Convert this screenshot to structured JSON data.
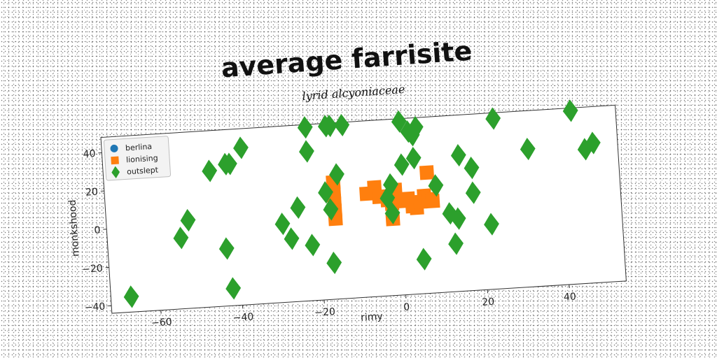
{
  "chart_data": {
    "type": "scatter",
    "title": "average farrisite",
    "subtitle": "lyrid alcyoniaceae",
    "xlabel": "rimy",
    "ylabel": "monkshood",
    "xlim": [
      -72,
      54
    ],
    "ylim": [
      -44,
      48
    ],
    "xticks": [
      -60,
      -40,
      -20,
      0,
      20,
      40
    ],
    "yticks": [
      -40,
      -20,
      0,
      20,
      40
    ],
    "xtick_labels": [
      "−60",
      "−40",
      "−20",
      "0",
      "20",
      "40"
    ],
    "ytick_labels": [
      "−40",
      "−20",
      "0",
      "20",
      "40"
    ],
    "grid": false,
    "legend_position": "top-left",
    "series": [
      {
        "name": "berlina",
        "marker": "circle",
        "color": "#1f77b4",
        "points": []
      },
      {
        "name": "lionising",
        "marker": "square",
        "color": "#ff7f0e",
        "points": [
          [
            -16,
            17
          ],
          [
            -16,
            12
          ],
          [
            -16,
            7
          ],
          [
            -16,
            2
          ],
          [
            -16,
            -2
          ],
          [
            -8,
            10
          ],
          [
            -6,
            13
          ],
          [
            -5,
            8
          ],
          [
            -3,
            6
          ],
          [
            -1,
            11
          ],
          [
            -2,
            4
          ],
          [
            0,
            5
          ],
          [
            2,
            6
          ],
          [
            3,
            2
          ],
          [
            4,
            1
          ],
          [
            5,
            4
          ],
          [
            6,
            7
          ],
          [
            7,
            5
          ],
          [
            8,
            4
          ],
          [
            7,
            19
          ],
          [
            -2,
            -4
          ]
        ]
      },
      {
        "name": "outslept",
        "marker": "diamond",
        "color": "#2ca02c",
        "points": [
          [
            -67,
            -36
          ],
          [
            -54,
            -7
          ],
          [
            -52,
            2
          ],
          [
            -46,
            27
          ],
          [
            -42,
            30
          ],
          [
            -41,
            30
          ],
          [
            -38,
            38
          ],
          [
            -43,
            -14
          ],
          [
            -42,
            -35
          ],
          [
            -29,
            -3
          ],
          [
            -27,
            -11
          ],
          [
            -25,
            5
          ],
          [
            -22,
            47
          ],
          [
            -22,
            34
          ],
          [
            -22,
            -15
          ],
          [
            -17,
            50
          ],
          [
            -16,
            50
          ],
          [
            -13,
            52
          ],
          [
            -18,
            12
          ],
          [
            -17,
            3
          ],
          [
            -15,
            21
          ],
          [
            -17,
            -25
          ],
          [
            1,
            53
          ],
          [
            -2,
            14
          ],
          [
            -3,
            7
          ],
          [
            -2,
            -1
          ],
          [
            3,
            41
          ],
          [
            4,
            39
          ],
          [
            5,
            43
          ],
          [
            4,
            27
          ],
          [
            1,
            24
          ],
          [
            9,
            12
          ],
          [
            12,
            -3
          ],
          [
            14,
            -6
          ],
          [
            13,
            -19
          ],
          [
            5,
            -26
          ],
          [
            15,
            27
          ],
          [
            18,
            20
          ],
          [
            18,
            7
          ],
          [
            22,
            -10
          ],
          [
            24,
            45
          ],
          [
            32,
            28
          ],
          [
            43,
            58
          ],
          [
            46,
            26
          ],
          [
            48,
            29
          ]
        ]
      }
    ]
  }
}
